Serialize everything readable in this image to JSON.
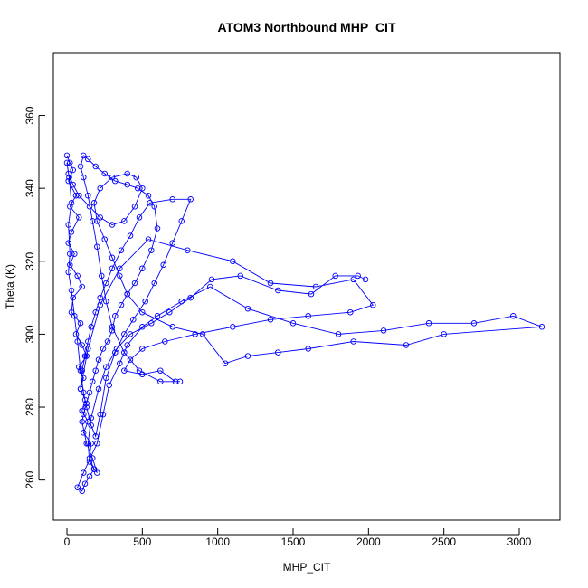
{
  "chart_data": {
    "type": "scatter",
    "title": "ATOM3 Northbound MHP_CIT",
    "xlabel": "MHP_CIT",
    "ylabel": "Theta (K)",
    "xlim": [
      -90,
      3270
    ],
    "ylim": [
      249,
      377
    ],
    "x_ticks": [
      0,
      500,
      1000,
      1500,
      2000,
      2500,
      3000
    ],
    "y_ticks": [
      260,
      280,
      300,
      320,
      340,
      360
    ],
    "grid": false,
    "legend": "none",
    "style": "points and connecting lines",
    "color": "#0000ff",
    "series": [
      {
        "points": [
          [
            0,
            349
          ],
          [
            20,
            347
          ],
          [
            40,
            345
          ],
          [
            10,
            342
          ],
          [
            60,
            338
          ],
          [
            20,
            335
          ],
          [
            80,
            332
          ],
          [
            30,
            328
          ],
          [
            10,
            325
          ],
          [
            50,
            322
          ],
          [
            20,
            319
          ],
          [
            70,
            316
          ],
          [
            100,
            313
          ],
          [
            40,
            310
          ],
          [
            30,
            306
          ],
          [
            90,
            303
          ],
          [
            60,
            300
          ],
          [
            100,
            297
          ],
          [
            130,
            294
          ],
          [
            80,
            291
          ],
          [
            110,
            288
          ],
          [
            90,
            285
          ],
          [
            120,
            282
          ],
          [
            100,
            279
          ],
          [
            140,
            276
          ],
          [
            110,
            273
          ],
          [
            160,
            270
          ],
          [
            150,
            266
          ],
          [
            180,
            263
          ],
          [
            150,
            261
          ],
          [
            120,
            259
          ],
          [
            100,
            257
          ],
          [
            70,
            258
          ],
          [
            110,
            262
          ],
          [
            200,
            270
          ],
          [
            240,
            278
          ],
          [
            280,
            286
          ],
          [
            350,
            292
          ],
          [
            400,
            297
          ],
          [
            500,
            302
          ],
          [
            600,
            305
          ],
          [
            760,
            309
          ],
          [
            950,
            313
          ],
          [
            1200,
            307
          ],
          [
            1500,
            303
          ],
          [
            1800,
            300
          ],
          [
            2100,
            301
          ],
          [
            2400,
            303
          ],
          [
            2700,
            303
          ],
          [
            2960,
            305
          ],
          [
            3150,
            302
          ],
          [
            2500,
            300
          ],
          [
            2250,
            297
          ],
          [
            1900,
            298
          ],
          [
            1600,
            296
          ],
          [
            1400,
            295
          ],
          [
            1200,
            294
          ],
          [
            1050,
            292
          ],
          [
            900,
            300
          ],
          [
            700,
            302
          ],
          [
            500,
            306
          ],
          [
            400,
            311
          ],
          [
            350,
            316
          ],
          [
            300,
            321
          ],
          [
            250,
            326
          ],
          [
            200,
            331
          ],
          [
            180,
            336
          ],
          [
            220,
            340
          ],
          [
            300,
            343
          ],
          [
            400,
            344
          ],
          [
            460,
            343
          ],
          [
            500,
            340
          ],
          [
            450,
            335
          ],
          [
            380,
            331
          ],
          [
            300,
            330
          ],
          [
            220,
            332
          ],
          [
            150,
            335
          ],
          [
            80,
            338
          ],
          [
            40,
            341
          ],
          [
            10,
            344
          ],
          [
            0,
            347
          ],
          [
            15,
            343
          ],
          [
            30,
            336
          ],
          [
            10,
            330
          ],
          [
            20,
            322
          ],
          [
            10,
            317
          ],
          [
            30,
            312
          ],
          [
            50,
            305
          ],
          [
            70,
            298
          ],
          [
            90,
            290
          ],
          [
            110,
            284
          ],
          [
            130,
            280
          ],
          [
            160,
            275
          ],
          [
            190,
            272
          ],
          [
            220,
            278
          ],
          [
            260,
            288
          ],
          [
            320,
            295
          ],
          [
            380,
            300
          ],
          [
            440,
            304
          ],
          [
            520,
            309
          ],
          [
            580,
            314
          ],
          [
            640,
            319
          ],
          [
            700,
            325
          ],
          [
            760,
            331
          ],
          [
            820,
            337
          ],
          [
            700,
            337
          ],
          [
            550,
            336
          ],
          [
            480,
            332
          ],
          [
            420,
            327
          ],
          [
            360,
            323
          ],
          [
            300,
            318
          ],
          [
            260,
            314
          ],
          [
            220,
            310
          ],
          [
            190,
            306
          ],
          [
            160,
            302
          ],
          [
            140,
            298
          ],
          [
            120,
            294
          ],
          [
            100,
            290
          ],
          [
            90,
            285
          ],
          [
            140,
            296
          ],
          [
            220,
            308
          ],
          [
            350,
            318
          ],
          [
            540,
            326
          ],
          [
            800,
            323
          ],
          [
            1100,
            320
          ],
          [
            1350,
            314
          ],
          [
            1650,
            313
          ],
          [
            1900,
            315
          ],
          [
            2030,
            308
          ],
          [
            1880,
            306
          ],
          [
            1600,
            305
          ],
          [
            1350,
            304
          ],
          [
            1100,
            302
          ],
          [
            850,
            300
          ],
          [
            650,
            298
          ],
          [
            500,
            296
          ],
          [
            420,
            293
          ],
          [
            380,
            290
          ],
          [
            500,
            289
          ],
          [
            620,
            290
          ],
          [
            720,
            287
          ],
          [
            750,
            287
          ],
          [
            620,
            287
          ],
          [
            480,
            290
          ],
          [
            380,
            295
          ],
          [
            300,
            302
          ],
          [
            260,
            309
          ],
          [
            230,
            316
          ],
          [
            200,
            324
          ],
          [
            170,
            331
          ],
          [
            140,
            338
          ],
          [
            110,
            343
          ],
          [
            90,
            346
          ],
          [
            110,
            349
          ],
          [
            140,
            348
          ],
          [
            190,
            346
          ],
          [
            250,
            344
          ],
          [
            320,
            342
          ],
          [
            400,
            341
          ],
          [
            470,
            340
          ],
          [
            540,
            338
          ],
          [
            580,
            335
          ],
          [
            600,
            329
          ],
          [
            560,
            323
          ],
          [
            500,
            318
          ],
          [
            450,
            314
          ],
          [
            400,
            311
          ],
          [
            360,
            308
          ],
          [
            320,
            305
          ],
          [
            300,
            301
          ],
          [
            270,
            298
          ],
          [
            240,
            296
          ],
          [
            210,
            293
          ],
          [
            190,
            290
          ],
          [
            170,
            287
          ],
          [
            150,
            284
          ],
          [
            130,
            281
          ],
          [
            110,
            278
          ],
          [
            100,
            276
          ],
          [
            130,
            270
          ],
          [
            170,
            266
          ],
          [
            200,
            262
          ],
          [
            180,
            263
          ],
          [
            150,
            265
          ],
          [
            140,
            270
          ],
          [
            160,
            277
          ],
          [
            210,
            285
          ],
          [
            260,
            291
          ],
          [
            330,
            296
          ],
          [
            420,
            300
          ],
          [
            560,
            303
          ],
          [
            680,
            306
          ],
          [
            820,
            310
          ],
          [
            960,
            315
          ],
          [
            1150,
            316
          ],
          [
            1400,
            312
          ],
          [
            1620,
            311
          ],
          [
            1780,
            316
          ],
          [
            1930,
            316
          ],
          [
            1980,
            315
          ]
        ]
      }
    ]
  }
}
